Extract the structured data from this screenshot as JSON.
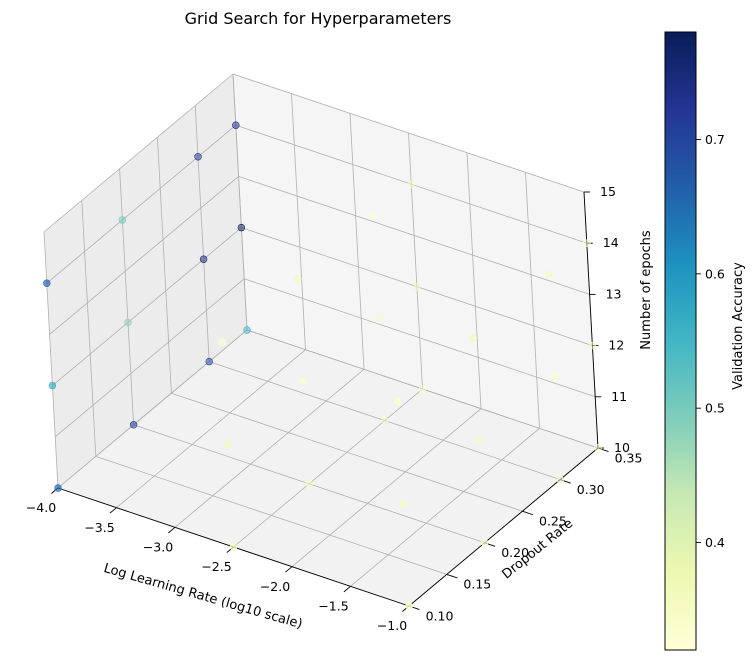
{
  "chart_data": {
    "type": "scatter",
    "projection": "3d",
    "title": "Grid Search for Hyperparameters",
    "xlabel": "Log Learning Rate (log10 scale)",
    "ylabel": "Dropout Rate",
    "zlabel": "Number of epochs",
    "colorbar_label": "Validation Accuracy",
    "colormap": "YlGnBu",
    "x_ticks": [
      "−4.0",
      "−3.5",
      "−3.0",
      "−2.5",
      "−2.0",
      "−1.5",
      "−1.0"
    ],
    "y_ticks": [
      "0.10",
      "0.15",
      "0.20",
      "0.25",
      "0.30",
      "0.35"
    ],
    "z_ticks": [
      "10",
      "11",
      "12",
      "13",
      "14",
      "15"
    ],
    "colorbar_ticks": [
      "0.4",
      "0.5",
      "0.6",
      "0.7"
    ],
    "xlim": [
      -4.0,
      -1.0
    ],
    "ylim": [
      0.1,
      0.35
    ],
    "zlim": [
      10,
      15
    ],
    "clim": [
      0.32,
      0.78
    ],
    "grid": true,
    "colorbar_location": "right",
    "points": [
      {
        "x": -4.0,
        "y": 0.1,
        "z": 10,
        "accuracy": 0.65
      },
      {
        "x": -4.0,
        "y": 0.1,
        "z": 12,
        "accuracy": 0.56
      },
      {
        "x": -4.0,
        "y": 0.1,
        "z": 14,
        "accuracy": 0.66
      },
      {
        "x": -4.0,
        "y": 0.2,
        "z": 10,
        "accuracy": 0.72
      },
      {
        "x": -4.0,
        "y": 0.2,
        "z": 12,
        "accuracy": 0.48
      },
      {
        "x": -4.0,
        "y": 0.2,
        "z": 14,
        "accuracy": 0.5
      },
      {
        "x": -4.0,
        "y": 0.3,
        "z": 10,
        "accuracy": 0.7
      },
      {
        "x": -4.0,
        "y": 0.3,
        "z": 12,
        "accuracy": 0.75
      },
      {
        "x": -4.0,
        "y": 0.3,
        "z": 14,
        "accuracy": 0.72
      },
      {
        "x": -4.0,
        "y": 0.35,
        "z": 10,
        "accuracy": 0.55
      },
      {
        "x": -4.0,
        "y": 0.35,
        "z": 12,
        "accuracy": 0.78
      },
      {
        "x": -4.0,
        "y": 0.35,
        "z": 14,
        "accuracy": 0.74
      },
      {
        "x": -2.5,
        "y": 0.1,
        "z": 10,
        "accuracy": 0.35
      },
      {
        "x": -2.5,
        "y": 0.1,
        "z": 12,
        "accuracy": 0.36
      },
      {
        "x": -2.5,
        "y": 0.1,
        "z": 14,
        "accuracy": 0.34
      },
      {
        "x": -2.5,
        "y": 0.2,
        "z": 10,
        "accuracy": 0.35
      },
      {
        "x": -2.5,
        "y": 0.2,
        "z": 12,
        "accuracy": 0.34
      },
      {
        "x": -2.5,
        "y": 0.2,
        "z": 14,
        "accuracy": 0.36
      },
      {
        "x": -2.5,
        "y": 0.3,
        "z": 10,
        "accuracy": 0.36
      },
      {
        "x": -2.5,
        "y": 0.3,
        "z": 12,
        "accuracy": 0.35
      },
      {
        "x": -2.5,
        "y": 0.3,
        "z": 14,
        "accuracy": 0.34
      },
      {
        "x": -2.5,
        "y": 0.35,
        "z": 10,
        "accuracy": 0.34
      },
      {
        "x": -2.5,
        "y": 0.35,
        "z": 12,
        "accuracy": 0.36
      },
      {
        "x": -2.5,
        "y": 0.35,
        "z": 14,
        "accuracy": 0.35
      },
      {
        "x": -1.0,
        "y": 0.1,
        "z": 10,
        "accuracy": 0.34
      },
      {
        "x": -1.0,
        "y": 0.1,
        "z": 12,
        "accuracy": 0.35
      },
      {
        "x": -1.0,
        "y": 0.1,
        "z": 14,
        "accuracy": 0.33
      },
      {
        "x": -1.0,
        "y": 0.2,
        "z": 10,
        "accuracy": 0.34
      },
      {
        "x": -1.0,
        "y": 0.2,
        "z": 12,
        "accuracy": 0.35
      },
      {
        "x": -1.0,
        "y": 0.2,
        "z": 14,
        "accuracy": 0.36
      },
      {
        "x": -1.0,
        "y": 0.3,
        "z": 10,
        "accuracy": 0.35
      },
      {
        "x": -1.0,
        "y": 0.3,
        "z": 12,
        "accuracy": 0.34
      },
      {
        "x": -1.0,
        "y": 0.3,
        "z": 14,
        "accuracy": 0.36
      },
      {
        "x": -1.0,
        "y": 0.35,
        "z": 10,
        "accuracy": 0.34
      },
      {
        "x": -1.0,
        "y": 0.35,
        "z": 12,
        "accuracy": 0.35
      },
      {
        "x": -1.0,
        "y": 0.35,
        "z": 14,
        "accuracy": 0.33
      }
    ]
  }
}
